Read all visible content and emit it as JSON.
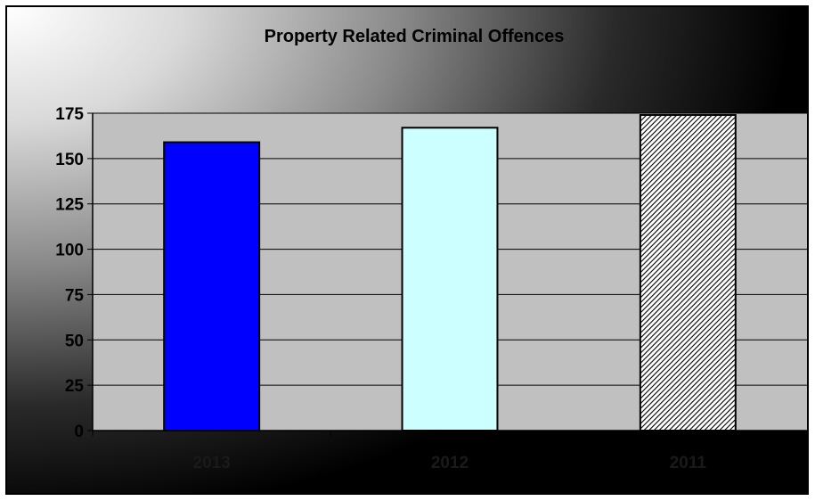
{
  "chart_data": {
    "type": "bar",
    "title": "Property Related Criminal Offences",
    "xlabel": "",
    "ylabel": "",
    "categories": [
      "2013",
      "2012",
      "2011"
    ],
    "values": [
      159,
      167,
      174
    ],
    "ylim": [
      0,
      175
    ],
    "yticks": [
      0,
      25,
      50,
      75,
      100,
      125,
      150,
      175
    ],
    "grid": true,
    "legend": "none",
    "colors": {
      "plot_background": "#c0c0c0",
      "bars": [
        "#0000ff",
        "#ccffff",
        "hatched-black-white"
      ]
    }
  }
}
